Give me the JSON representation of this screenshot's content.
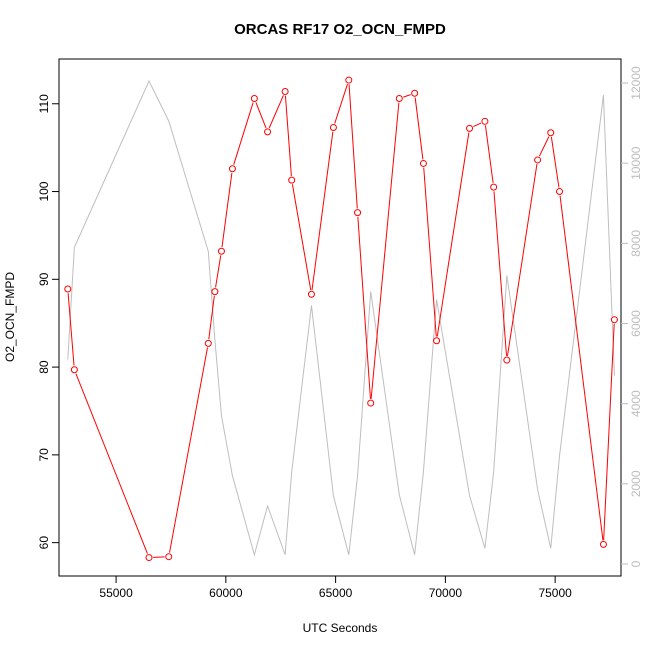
{
  "chart_data": {
    "type": "line",
    "title": "ORCAS RF17 O2_OCN_FMPD",
    "xlabel": "UTC Seconds",
    "ylabel": "O2_OCN_FMPD",
    "xlim": [
      52400,
      78000
    ],
    "ylim": [
      56.2,
      115.1
    ],
    "y2lim": [
      -300,
      12600
    ],
    "x_ticks": [
      55000,
      60000,
      65000,
      70000,
      75000
    ],
    "y_ticks": [
      60,
      70,
      80,
      90,
      100,
      110
    ],
    "y2_ticks": [
      0,
      2000,
      4000,
      6000,
      8000,
      10000,
      12000
    ],
    "series": [
      {
        "color": "#ff0000",
        "markers": "open-circle",
        "x": [
          52800,
          53100,
          56500,
          57400,
          59200,
          59500,
          59800,
          60300,
          61300,
          61900,
          62700,
          63000,
          63900,
          64900,
          65600,
          66000,
          66600,
          67900,
          68600,
          69000,
          69600,
          71100,
          71800,
          72200,
          72800,
          74200,
          74800,
          75200,
          77200,
          77700
        ],
        "y": [
          88.9,
          79.7,
          58.3,
          58.4,
          82.7,
          88.6,
          93.2,
          102.6,
          110.6,
          106.8,
          111.4,
          101.3,
          88.3,
          107.3,
          112.7,
          97.6,
          75.9,
          110.6,
          111.2,
          103.2,
          83.0,
          107.2,
          108.0,
          100.5,
          80.8,
          103.6,
          106.7,
          100.0,
          59.8,
          85.4
        ]
      },
      {
        "color": "#bebebe",
        "markers": "none",
        "axis": "right",
        "x": [
          52800,
          53100,
          56500,
          57400,
          59200,
          59500,
          59800,
          60300,
          61300,
          61900,
          62700,
          63000,
          63900,
          64900,
          65600,
          66000,
          66600,
          67900,
          68600,
          69000,
          69600,
          71100,
          71800,
          72200,
          72800,
          74200,
          74800,
          75200,
          77200,
          77700
        ],
        "y": [
          5100,
          7900,
          12050,
          11050,
          7800,
          5600,
          3700,
          2200,
          230,
          1450,
          230,
          2300,
          6450,
          1700,
          230,
          2200,
          6800,
          1730,
          230,
          2300,
          6600,
          1710,
          390,
          2300,
          7200,
          1860,
          390,
          2700,
          11700,
          4700
        ]
      }
    ]
  }
}
